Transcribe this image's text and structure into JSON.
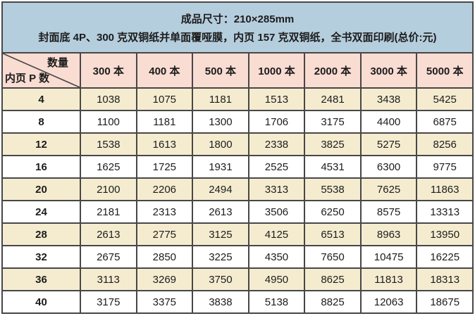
{
  "header": {
    "line1": "成品尺寸：210×285mm",
    "line2": "封面底 4P、300 克双铜纸并单面覆哑膜，内页 157 克双铜纸，全书双面印刷(总价:元)"
  },
  "corner": {
    "top_label": "数量",
    "bottom_label": "内页 P 数"
  },
  "table": {
    "columns": [
      "300 本",
      "400 本",
      "500 本",
      "1000 本",
      "2000 本",
      "3000 本",
      "5000 本"
    ],
    "rows": [
      {
        "p": "4",
        "values": [
          1038,
          1075,
          1181,
          1513,
          2481,
          3438,
          5425
        ]
      },
      {
        "p": "8",
        "values": [
          1100,
          1181,
          1300,
          1706,
          3175,
          4400,
          6875
        ]
      },
      {
        "p": "12",
        "values": [
          1538,
          1613,
          1800,
          2338,
          3825,
          5275,
          8256
        ]
      },
      {
        "p": "16",
        "values": [
          1625,
          1725,
          1931,
          2525,
          4531,
          6300,
          9775
        ]
      },
      {
        "p": "20",
        "values": [
          2100,
          2206,
          2494,
          3313,
          5538,
          7625,
          11863
        ]
      },
      {
        "p": "24",
        "values": [
          2181,
          2313,
          2613,
          3506,
          6250,
          8575,
          13313
        ]
      },
      {
        "p": "28",
        "values": [
          2613,
          2775,
          3125,
          4125,
          6513,
          8963,
          13950
        ]
      },
      {
        "p": "32",
        "values": [
          2675,
          2850,
          3225,
          4350,
          7650,
          10475,
          16225
        ]
      },
      {
        "p": "36",
        "values": [
          3113,
          3269,
          3750,
          4950,
          8625,
          11813,
          18313
        ]
      },
      {
        "p": "40",
        "values": [
          3175,
          3375,
          3838,
          5138,
          8825,
          12063,
          18675
        ]
      }
    ]
  },
  "colors": {
    "blue": "#b5cede",
    "pink": "#f9dcd2",
    "cream": "#f5ecd0",
    "white": "#ffffff",
    "border": "#474747",
    "text": "#1c1c1c"
  }
}
